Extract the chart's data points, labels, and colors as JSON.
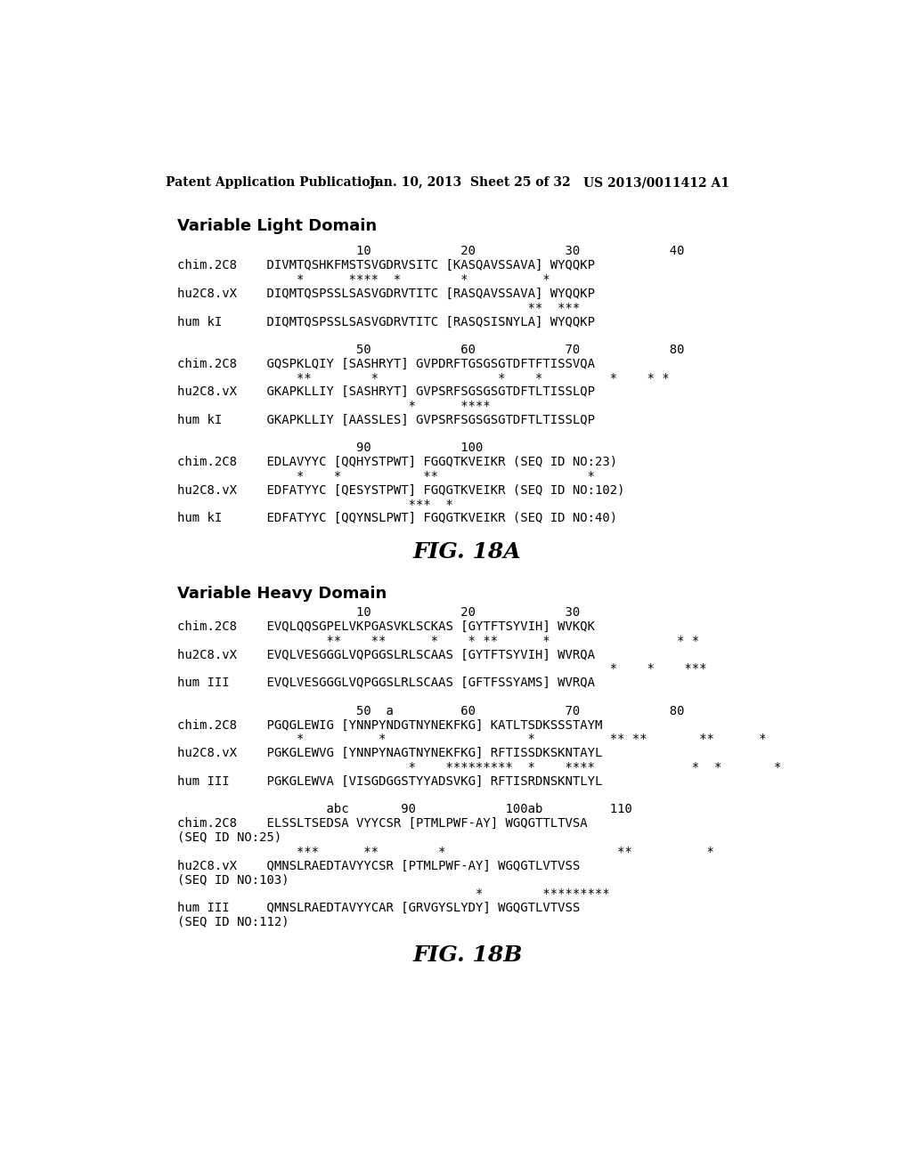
{
  "header_left": "Patent Application Publication",
  "header_mid": "Jan. 10, 2013  Sheet 25 of 32",
  "header_right": "US 2013/0011412 A1",
  "fig18a_title": "FIG. 18A",
  "fig18b_title": "FIG. 18B",
  "section1_title": "Variable Light Domain",
  "section2_title": "Variable Heavy Domain",
  "section1_lines": [
    "                        10            20            30            40",
    "chim.2C8    DIVMTQSHKFMSTSVGDRVSITC [KASQAVSSAVA] WYQQKP",
    "                *      ****  *        *          *",
    "hu2C8.vX    DIQMTQSPSSLSASVGDRVTITC [RASQAVSSAVA] WYQQKP",
    "                                               **  ***",
    "hum kI      DIQMTQSPSSLSASVGDRVTITC [RASQSISNYLA] WYQQKP",
    "",
    "                        50            60            70            80",
    "chim.2C8    GQSPKLQIY [SASHRYT] GVPDRFTGSGSGTDFTFTISSVQA",
    "                **        *                *    *         *    * *",
    "hu2C8.vX    GKAPKLLIY [SASHRYT] GVPSRFSGSGSGTDFTLTISSLQP",
    "                               *      ****",
    "hum kI      GKAPKLLIY [AASSLES] GVPSRFSGSGSGTDFTLTISSLQP",
    "",
    "                        90            100",
    "chim.2C8    EDLAVYYC [QQHYSTPWT] FGGQTKVEIKR (SEQ ID NO:23)",
    "                *    *           **                    *",
    "hu2C8.vX    EDFATYYC [QESYSTPWT] FGQGTKVEIKR (SEQ ID NO:102)",
    "                               ***  *",
    "hum kI      EDFATYYC [QQYNSLPWT] FGQGTKVEIKR (SEQ ID NO:40)"
  ],
  "section2_lines": [
    "                        10            20            30",
    "chim.2C8    EVQLQQSGPELVKPGASVKLSCKAS [GYTFTSYVIH] WVKQK",
    "                    **    **      *    * **      *                 * *",
    "hu2C8.vX    EVQLVESGGGLVQPGGSLRLSCAAS [GYTFTSYVIH] WVRQA",
    "                                                          *    *    ***",
    "hum III     EVQLVESGGGLVQPGGSLRLSCAAS [GFTFSSYAMS] WVRQA",
    "",
    "                        50  a         60            70            80",
    "chim.2C8    PGQGLEWIG [YNNPYNDGTNYNEKFKG] KATLTSDKSSSTAYM",
    "                *          *                   *          ** **       **      *",
    "hu2C8.vX    PGKGLEWVG [YNNPYNAGTNYNEKFKG] RFTISSDKSKNTAYL",
    "                               *    *********  *    ****             *  *       *",
    "hum III     PGKGLEWVA [VISGDGGSTYYADSVKG] RFTISRDNSKNTLYL",
    "",
    "                    abc       90            100ab         110",
    "chim.2C8    ELSSLTSEDSA VYYCSR [PTMLPWF-AY] WGQGTTLTVSA",
    "(SEQ ID NO:25)",
    "                ***      **        *                       **          *",
    "hu2C8.vX    QMNSLRAEDTAVYYCSR [PTMLPWF-AY] WGQGTLVTVSS",
    "(SEQ ID NO:103)",
    "                                        *        *********",
    "hum III     QMNSLRAEDTAVYYCAR [GRVGYSLYDY] WGQGTLVTVSS",
    "(SEQ ID NO:112)"
  ],
  "background_color": "#ffffff",
  "text_color": "#000000"
}
